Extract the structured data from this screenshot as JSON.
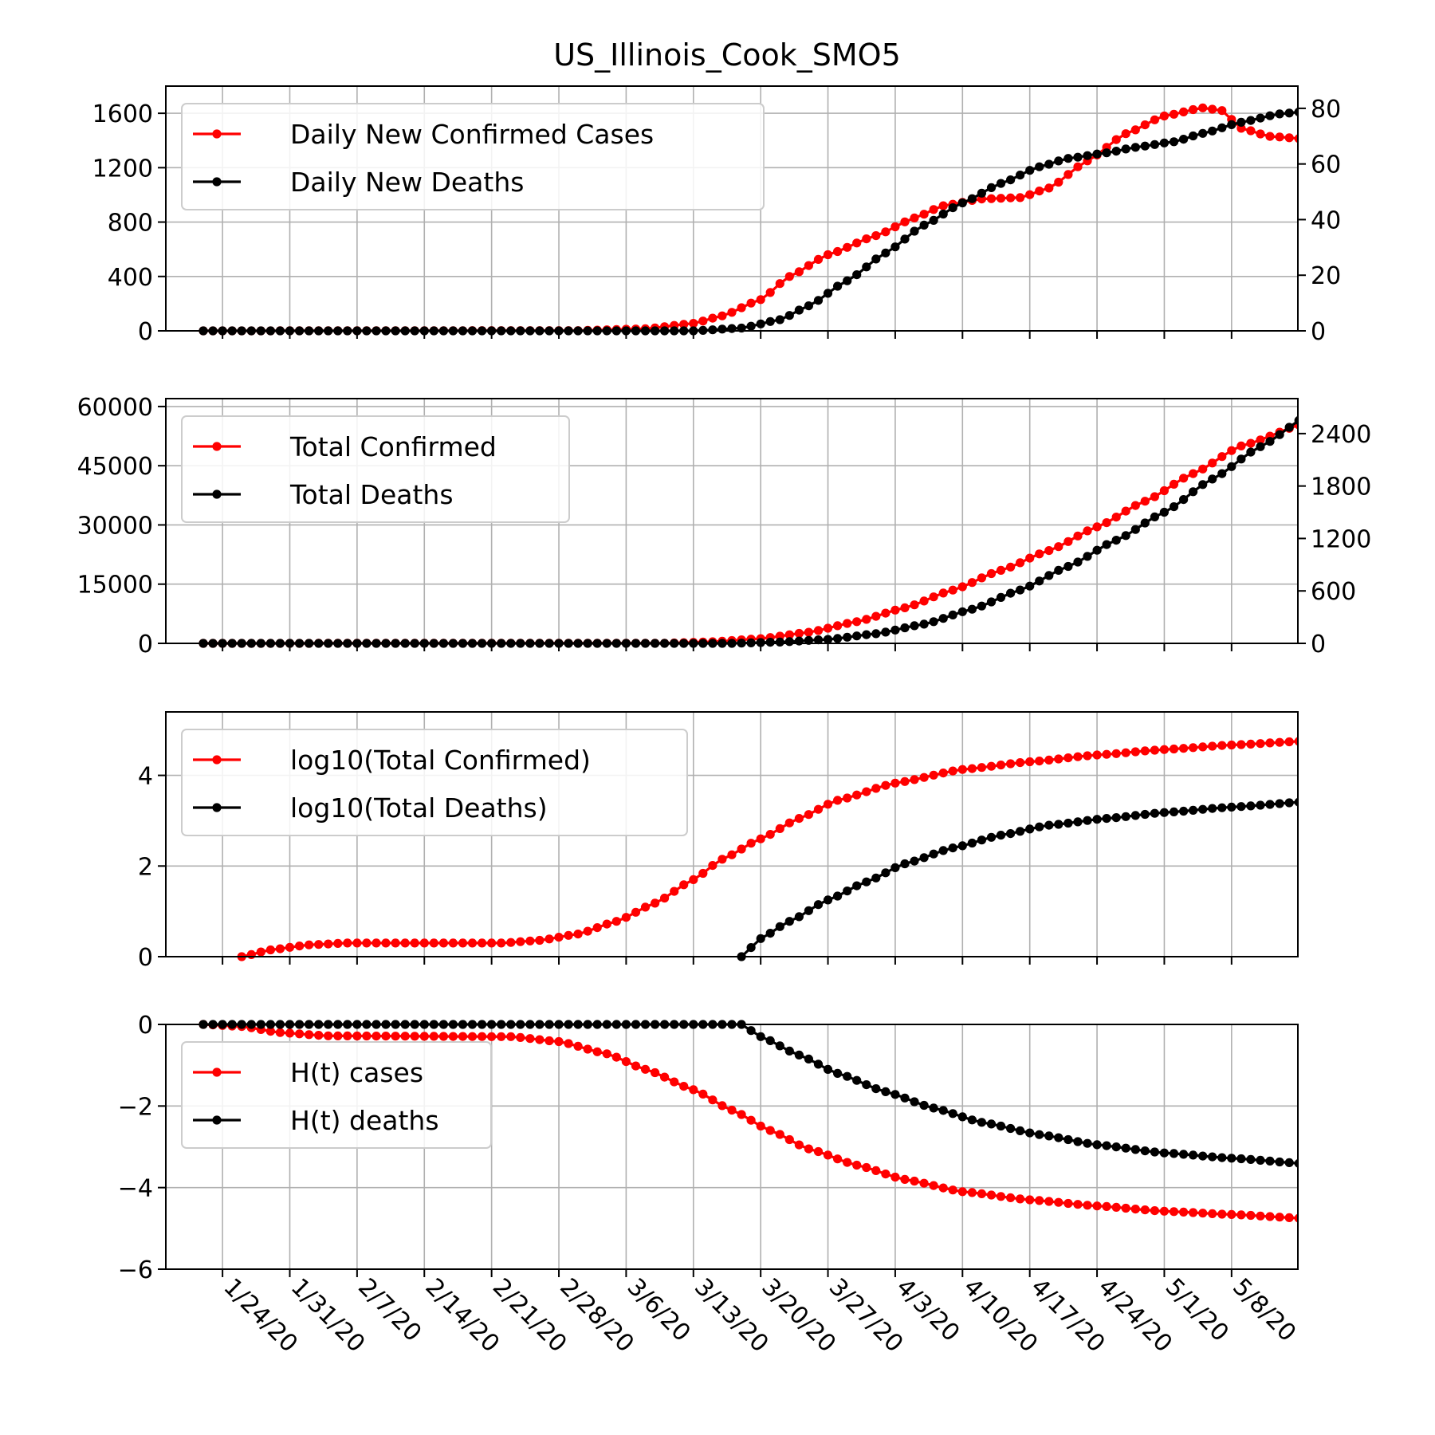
{
  "chart_data": {
    "title": "US_Illinois_Cook_SMO5",
    "x_start": "1/22/20",
    "x_end": "5/11/20",
    "xticks": [
      "1/24/20",
      "1/31/20",
      "2/7/20",
      "2/14/20",
      "2/21/20",
      "2/28/20",
      "3/6/20",
      "3/13/20",
      "3/20/20",
      "3/27/20",
      "4/3/20",
      "4/10/20",
      "4/17/20",
      "4/24/20",
      "5/1/20",
      "5/8/20"
    ],
    "colors": {
      "cases": "#ff0000",
      "deaths": "#000000"
    },
    "panels": [
      {
        "type": "line",
        "left_ylim": [
          0,
          1800
        ],
        "left_yticks": [
          0,
          400,
          800,
          1200,
          1600
        ],
        "right_ylim": [
          0,
          88
        ],
        "right_yticks": [
          0,
          20,
          40,
          60,
          80
        ],
        "grid": true,
        "legend_position": "upper-left",
        "series": [
          {
            "name": "Daily New Confirmed Cases",
            "axis": "left",
            "color": "#ff0000",
            "points": [
              [
                "1/22/20",
                0
              ],
              [
                "3/1/20",
                2
              ],
              [
                "3/8/20",
                15
              ],
              [
                "3/13/20",
                55
              ],
              [
                "3/16/20",
                110
              ],
              [
                "3/20/20",
                230
              ],
              [
                "3/23/20",
                400
              ],
              [
                "3/27/20",
                560
              ],
              [
                "4/1/20",
                700
              ],
              [
                "4/5/20",
                830
              ],
              [
                "4/8/20",
                920
              ],
              [
                "4/12/20",
                970
              ],
              [
                "4/16/20",
                980
              ],
              [
                "4/19/20",
                1050
              ],
              [
                "4/23/20",
                1250
              ],
              [
                "4/27/20",
                1450
              ],
              [
                "5/1/20",
                1580
              ],
              [
                "5/5/20",
                1640
              ],
              [
                "5/7/20",
                1620
              ],
              [
                "5/9/20",
                1490
              ],
              [
                "5/12/20",
                1430
              ],
              [
                "5/16/20",
                1410
              ]
            ]
          },
          {
            "name": "Daily New Deaths",
            "axis": "right",
            "color": "#000000",
            "points": [
              [
                "1/22/20",
                0
              ],
              [
                "3/13/20",
                0
              ],
              [
                "3/18/20",
                1
              ],
              [
                "3/22/20",
                4
              ],
              [
                "3/25/20",
                9
              ],
              [
                "3/29/20",
                18
              ],
              [
                "4/2/20",
                28
              ],
              [
                "4/6/20",
                38
              ],
              [
                "4/10/20",
                46
              ],
              [
                "4/14/20",
                53
              ],
              [
                "4/18/20",
                59
              ],
              [
                "4/21/20",
                62
              ],
              [
                "4/25/20",
                64
              ],
              [
                "4/28/20",
                66
              ],
              [
                "5/2/20",
                68
              ],
              [
                "5/5/20",
                71
              ],
              [
                "5/9/20",
                75
              ],
              [
                "5/13/20",
                78
              ],
              [
                "5/16/20",
                79
              ]
            ]
          }
        ]
      },
      {
        "type": "line",
        "left_ylim": [
          0,
          62000
        ],
        "left_yticks": [
          0,
          15000,
          30000,
          45000,
          60000
        ],
        "right_ylim": [
          0,
          2800
        ],
        "right_yticks": [
          0,
          600,
          1200,
          1800,
          2400
        ],
        "grid": true,
        "legend_position": "upper-left",
        "series": [
          {
            "name": "Total Confirmed",
            "axis": "left",
            "color": "#ff0000",
            "points": [
              [
                "1/22/20",
                0
              ],
              [
                "3/10/20",
                50
              ],
              [
                "3/15/20",
                400
              ],
              [
                "3/20/20",
                1200
              ],
              [
                "3/25/20",
                2800
              ],
              [
                "3/30/20",
                5500
              ],
              [
                "4/4/20",
                9000
              ],
              [
                "4/9/20",
                13500
              ],
              [
                "4/14/20",
                18500
              ],
              [
                "4/19/20",
                23500
              ],
              [
                "4/24/20",
                29500
              ],
              [
                "4/29/20",
                36000
              ],
              [
                "5/4/20",
                43000
              ],
              [
                "5/9/20",
                50000
              ],
              [
                "5/16/20",
                56000
              ]
            ]
          },
          {
            "name": "Total Deaths",
            "axis": "right",
            "color": "#000000",
            "points": [
              [
                "1/22/20",
                0
              ],
              [
                "3/17/20",
                0
              ],
              [
                "3/22/20",
                15
              ],
              [
                "3/27/20",
                45
              ],
              [
                "4/1/20",
                110
              ],
              [
                "4/6/20",
                220
              ],
              [
                "4/11/20",
                390
              ],
              [
                "4/16/20",
                610
              ],
              [
                "4/21/20",
                880
              ],
              [
                "4/26/20",
                1180
              ],
              [
                "5/1/20",
                1500
              ],
              [
                "5/6/20",
                1880
              ],
              [
                "5/11/20",
                2250
              ],
              [
                "5/16/20",
                2610
              ]
            ]
          }
        ]
      },
      {
        "type": "line",
        "left_ylim": [
          0,
          5.4
        ],
        "left_yticks": [
          0,
          2,
          4
        ],
        "grid": true,
        "legend_position": "upper-left",
        "series": [
          {
            "name": "log10(Total Confirmed)",
            "axis": "left",
            "color": "#ff0000",
            "points": [
              [
                "1/26/20",
                0
              ],
              [
                "1/29/20",
                0.15
              ],
              [
                "2/2/20",
                0.26
              ],
              [
                "2/6/20",
                0.3
              ],
              [
                "2/22/20",
                0.3
              ],
              [
                "2/26/20",
                0.36
              ],
              [
                "3/1/20",
                0.5
              ],
              [
                "3/5/20",
                0.78
              ],
              [
                "3/9/20",
                1.18
              ],
              [
                "3/13/20",
                1.7
              ],
              [
                "3/16/20",
                2.15
              ],
              [
                "3/20/20",
                2.6
              ],
              [
                "3/24/20",
                3.05
              ],
              [
                "3/28/20",
                3.45
              ],
              [
                "4/3/20",
                3.83
              ],
              [
                "4/10/20",
                4.13
              ],
              [
                "4/17/20",
                4.3
              ],
              [
                "4/24/20",
                4.45
              ],
              [
                "5/1/20",
                4.57
              ],
              [
                "5/8/20",
                4.67
              ],
              [
                "5/16/20",
                4.76
              ]
            ]
          },
          {
            "name": "log10(Total Deaths)",
            "axis": "left",
            "color": "#000000",
            "points": [
              [
                "3/18/20",
                0
              ],
              [
                "3/20/20",
                0.4
              ],
              [
                "3/23/20",
                0.78
              ],
              [
                "3/27/20",
                1.25
              ],
              [
                "3/31/20",
                1.65
              ],
              [
                "4/4/20",
                2.05
              ],
              [
                "4/9/20",
                2.4
              ],
              [
                "4/14/20",
                2.68
              ],
              [
                "4/19/20",
                2.9
              ],
              [
                "4/25/20",
                3.05
              ],
              [
                "5/1/20",
                3.18
              ],
              [
                "5/8/20",
                3.3
              ],
              [
                "5/16/20",
                3.42
              ]
            ]
          }
        ]
      },
      {
        "type": "line",
        "left_ylim": [
          -6,
          0
        ],
        "left_yticks": [
          -6,
          -4,
          -2,
          0
        ],
        "left_ytick_labels": [
          "−6",
          "−4",
          "−2",
          "0"
        ],
        "grid": true,
        "legend_position": "upper-left",
        "series": [
          {
            "name": "H(t) cases",
            "axis": "left",
            "color": "#ff0000",
            "points": [
              [
                "1/22/20",
                0
              ],
              [
                "1/26/20",
                -0.05
              ],
              [
                "1/30/20",
                -0.2
              ],
              [
                "2/4/20",
                -0.28
              ],
              [
                "2/23/20",
                -0.3
              ],
              [
                "2/28/20",
                -0.42
              ],
              [
                "3/4/20",
                -0.72
              ],
              [
                "3/8/20",
                -1.1
              ],
              [
                "3/13/20",
                -1.6
              ],
              [
                "3/17/20",
                -2.1
              ],
              [
                "3/21/20",
                -2.6
              ],
              [
                "3/25/20",
                -3.05
              ],
              [
                "3/30/20",
                -3.45
              ],
              [
                "4/4/20",
                -3.8
              ],
              [
                "4/10/20",
                -4.1
              ],
              [
                "4/17/20",
                -4.3
              ],
              [
                "4/24/20",
                -4.45
              ],
              [
                "5/1/20",
                -4.58
              ],
              [
                "5/8/20",
                -4.66
              ],
              [
                "5/16/20",
                -4.76
              ]
            ]
          },
          {
            "name": "H(t) deaths",
            "axis": "left",
            "color": "#000000",
            "points": [
              [
                "1/22/20",
                0
              ],
              [
                "3/10/20",
                0
              ],
              [
                "3/18/20",
                0
              ],
              [
                "3/20/20",
                -0.3
              ],
              [
                "3/24/20",
                -0.75
              ],
              [
                "3/28/20",
                -1.2
              ],
              [
                "4/2/20",
                -1.65
              ],
              [
                "4/7/20",
                -2.05
              ],
              [
                "4/12/20",
                -2.4
              ],
              [
                "4/18/20",
                -2.7
              ],
              [
                "4/24/20",
                -2.95
              ],
              [
                "5/1/20",
                -3.15
              ],
              [
                "5/8/20",
                -3.28
              ],
              [
                "5/16/20",
                -3.42
              ]
            ]
          }
        ]
      }
    ]
  }
}
